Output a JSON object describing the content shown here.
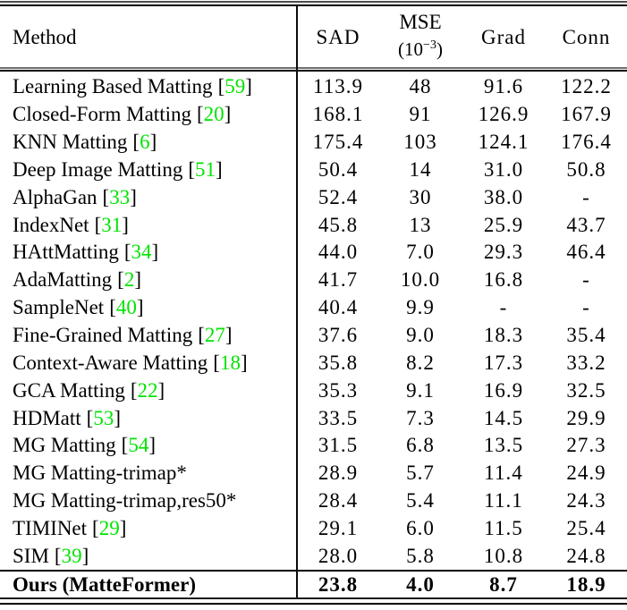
{
  "colors": {
    "cite_green": "#00e400",
    "text": "#000000",
    "rule": "#000000",
    "background": "#ffffff"
  },
  "table": {
    "cite_open": "[",
    "cite_close": "]",
    "header": {
      "method": "Method",
      "sad": "SAD",
      "mse_line1": "MSE",
      "mse_open": "(10",
      "mse_exp": "−3",
      "mse_close": ")",
      "grad": "Grad",
      "conn": "Conn"
    },
    "rows": [
      {
        "method": "Learning Based Matting",
        "cite": "59",
        "sad": "113.9",
        "mse": "48",
        "grad": "91.6",
        "conn": "122.2"
      },
      {
        "method": "Closed-Form Matting",
        "cite": "20",
        "sad": "168.1",
        "mse": "91",
        "grad": "126.9",
        "conn": "167.9"
      },
      {
        "method": "KNN Matting",
        "cite": "6",
        "sad": "175.4",
        "mse": "103",
        "grad": "124.1",
        "conn": "176.4"
      },
      {
        "method": "Deep Image Matting",
        "cite": "51",
        "sad": "50.4",
        "mse": "14",
        "grad": "31.0",
        "conn": "50.8"
      },
      {
        "method": "AlphaGan",
        "cite": "33",
        "sad": "52.4",
        "mse": "30",
        "grad": "38.0",
        "conn": "-"
      },
      {
        "method": "IndexNet",
        "cite": "31",
        "sad": "45.8",
        "mse": "13",
        "grad": "25.9",
        "conn": "43.7"
      },
      {
        "method": "HAttMatting",
        "cite": "34",
        "sad": "44.0",
        "mse": "7.0",
        "grad": "29.3",
        "conn": "46.4"
      },
      {
        "method": "AdaMatting",
        "cite": "2",
        "sad": "41.7",
        "mse": "10.0",
        "grad": "16.8",
        "conn": "-"
      },
      {
        "method": "SampleNet",
        "cite": "40",
        "sad": "40.4",
        "mse": "9.9",
        "grad": "-",
        "conn": "-"
      },
      {
        "method": "Fine-Grained Matting",
        "cite": "27",
        "sad": "37.6",
        "mse": "9.0",
        "grad": "18.3",
        "conn": "35.4"
      },
      {
        "method": "Context-Aware Matting",
        "cite": "18",
        "sad": "35.8",
        "mse": "8.2",
        "grad": "17.3",
        "conn": "33.2"
      },
      {
        "method": "GCA Matting",
        "cite": "22",
        "sad": "35.3",
        "mse": "9.1",
        "grad": "16.9",
        "conn": "32.5"
      },
      {
        "method": "HDMatt",
        "cite": "53",
        "sad": "33.5",
        "mse": "7.3",
        "grad": "14.5",
        "conn": "29.9"
      },
      {
        "method": "MG Matting",
        "cite": "54",
        "sad": "31.5",
        "mse": "6.8",
        "grad": "13.5",
        "conn": "27.3"
      },
      {
        "method": "MG Matting-trimap*",
        "cite": null,
        "sad": "28.9",
        "mse": "5.7",
        "grad": "11.4",
        "conn": "24.9"
      },
      {
        "method": "MG Matting-trimap,res50*",
        "cite": null,
        "sad": "28.4",
        "mse": "5.4",
        "grad": "11.1",
        "conn": "24.3"
      },
      {
        "method": "TIMINet",
        "cite": "29",
        "sad": "29.1",
        "mse": "6.0",
        "grad": "11.5",
        "conn": "25.4"
      },
      {
        "method": "SIM",
        "cite": "39",
        "sad": "28.0",
        "mse": "5.8",
        "grad": "10.8",
        "conn": "24.8"
      }
    ],
    "final_row": {
      "method": "Ours (MatteFormer)",
      "sad": "23.8",
      "mse": "4.0",
      "grad": "8.7",
      "conn": "18.9"
    }
  }
}
